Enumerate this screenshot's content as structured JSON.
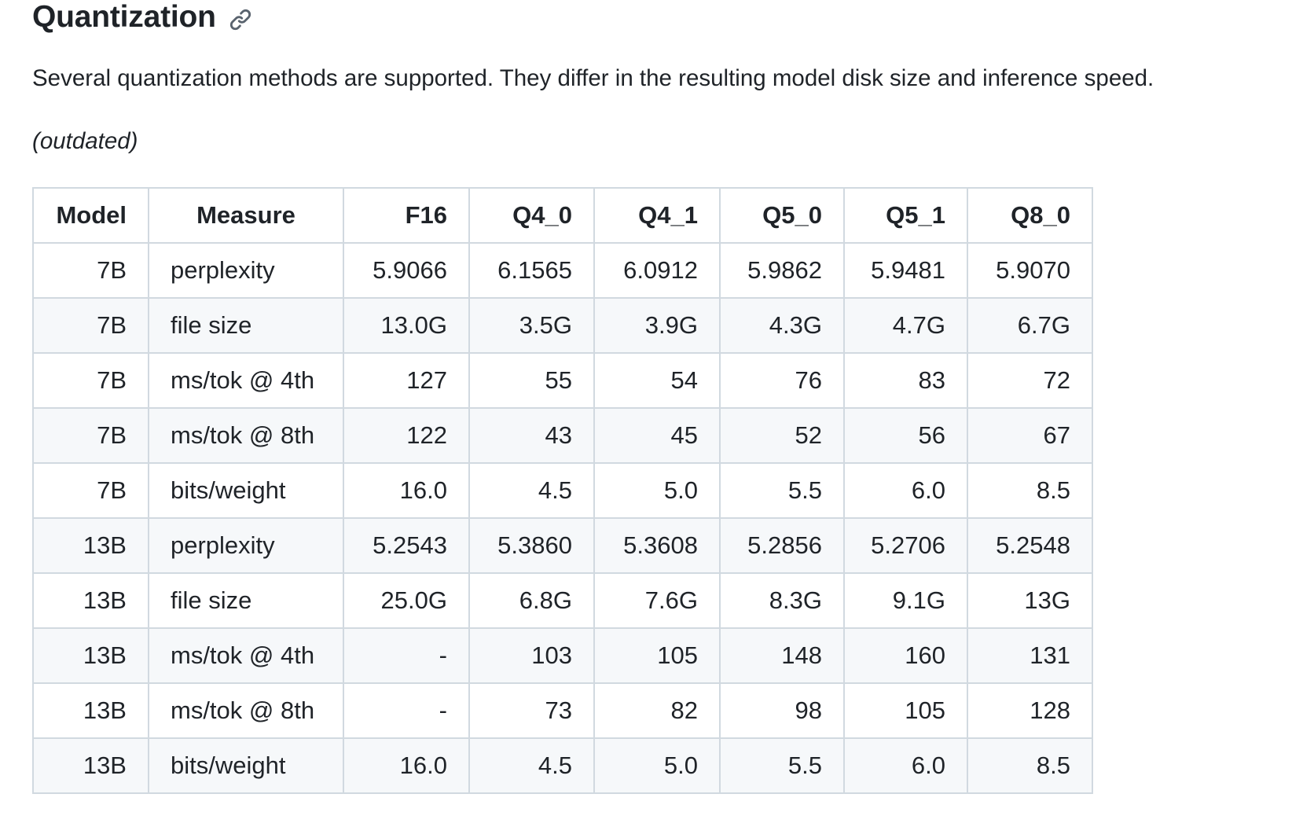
{
  "section": {
    "title": "Quantization",
    "anchor_icon": "link-icon",
    "description": "Several quantization methods are supported. They differ in the resulting model disk size and inference speed.",
    "note": "(outdated)"
  },
  "table": {
    "headers": [
      "Model",
      "Measure",
      "F16",
      "Q4_0",
      "Q4_1",
      "Q5_0",
      "Q5_1",
      "Q8_0"
    ],
    "rows": [
      [
        "7B",
        "perplexity",
        "5.9066",
        "6.1565",
        "6.0912",
        "5.9862",
        "5.9481",
        "5.9070"
      ],
      [
        "7B",
        "file size",
        "13.0G",
        "3.5G",
        "3.9G",
        "4.3G",
        "4.7G",
        "6.7G"
      ],
      [
        "7B",
        "ms/tok @ 4th",
        "127",
        "55",
        "54",
        "76",
        "83",
        "72"
      ],
      [
        "7B",
        "ms/tok @ 8th",
        "122",
        "43",
        "45",
        "52",
        "56",
        "67"
      ],
      [
        "7B",
        "bits/weight",
        "16.0",
        "4.5",
        "5.0",
        "5.5",
        "6.0",
        "8.5"
      ],
      [
        "13B",
        "perplexity",
        "5.2543",
        "5.3860",
        "5.3608",
        "5.2856",
        "5.2706",
        "5.2548"
      ],
      [
        "13B",
        "file size",
        "25.0G",
        "6.8G",
        "7.6G",
        "8.3G",
        "9.1G",
        "13G"
      ],
      [
        "13B",
        "ms/tok @ 4th",
        "-",
        "103",
        "105",
        "148",
        "160",
        "131"
      ],
      [
        "13B",
        "ms/tok @ 8th",
        "-",
        "73",
        "82",
        "98",
        "105",
        "128"
      ],
      [
        "13B",
        "bits/weight",
        "16.0",
        "4.5",
        "5.0",
        "5.5",
        "6.0",
        "8.5"
      ]
    ]
  }
}
